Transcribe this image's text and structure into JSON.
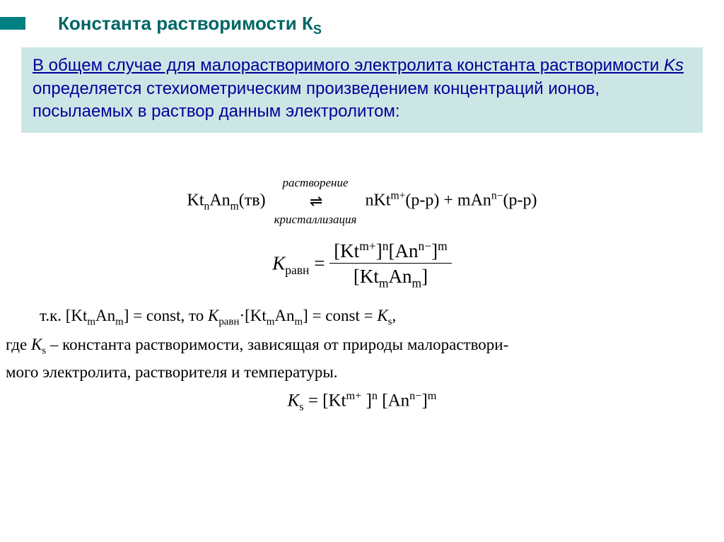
{
  "title": {
    "main": "Константа растворимости К",
    "subscript": "S"
  },
  "definition": {
    "underlined": "В общем случае для малорастворимого электролита константа растворимости ",
    "ks_underlined": "Ks",
    "rest": " определяется стехиометрическим произведением концентраций ионов, посылаемых в раствор данным электролитом:"
  },
  "reaction": {
    "left_kt": "Kt",
    "left_n": "n",
    "left_an": "An",
    "left_m": "m",
    "left_phase": "(тв)",
    "arrow_top": "растворение",
    "arrow_bot": "кристаллизация",
    "right_n": "nKt",
    "right_mplus": "m+",
    "right_pp1": "(р-р) + mAn",
    "right_nminus": "n−",
    "right_pp2": "(р-р)"
  },
  "keq": {
    "K_label": "K",
    "K_sub": "равн",
    "equals": " = ",
    "num": "[Kt",
    "num_mplus": "m+",
    "num_bracket_n": "]",
    "num_n": "n",
    "num_an": "[An",
    "num_nminus": "n−",
    "num_close": "]",
    "num_m": "m",
    "den_open": "[Kt",
    "den_m": "m",
    "den_an": "An",
    "den_msub": "m",
    "den_close": "]"
  },
  "const_line": {
    "prefix": "т.к. [Kt",
    "m1": "m",
    "an": "An",
    "m2": "m",
    "mid": "] = const, то ",
    "K": "K",
    "Ksub": "равн",
    "dot": "·[Kt",
    "m3": "m",
    "an2": "An",
    "m4": "m",
    "tail": "] = const = ",
    "Ks": "K",
    "Ks_sub": "s",
    "comma": ","
  },
  "where": {
    "line1_pre": "где ",
    "Ks": "K",
    "Ks_sub": "s",
    "line1_rest": " – константа растворимости, зависящая от природы малораствори-",
    "line2": "мого электролита, растворителя и температуры."
  },
  "final": {
    "K": "K",
    "s": "s",
    "eq": " = [Kt",
    "mplus": "m+",
    "space": " ",
    "bracket_n": "]",
    "n": "n",
    "an": " [An",
    "nminus": "n−",
    "close": "]",
    "m": "m"
  },
  "colors": {
    "title": "#006666",
    "accent": "#008080",
    "box_bg": "#cce6e6",
    "box_text": "#000099"
  }
}
